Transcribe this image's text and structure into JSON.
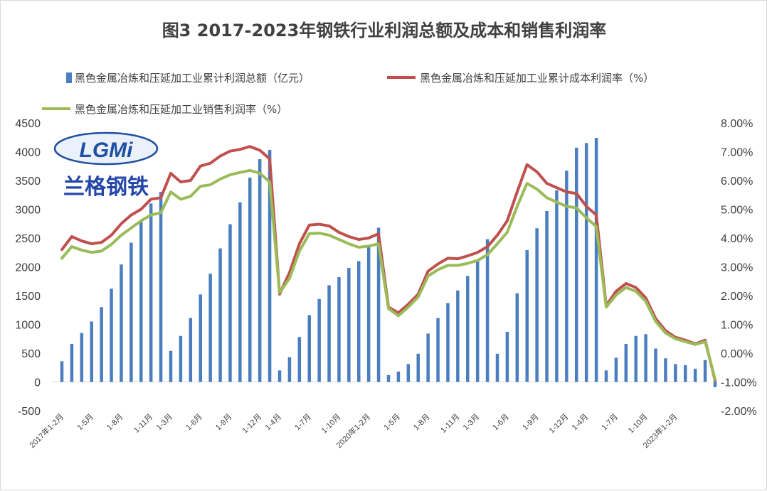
{
  "chart_data": {
    "type": "bar-line-combo",
    "title": "图3 2017-2023年钢铁行业利润总额及成本和销售利润率",
    "legend": [
      {
        "name": "黑色金属冶炼和压延加工业累计利润总额（亿元）",
        "kind": "bar",
        "color": "#4a7ebf"
      },
      {
        "name": "黑色金属冶炼和压延加工业累计成本利润率（%）",
        "kind": "line",
        "color": "#c0504d"
      },
      {
        "name": "黑色金属冶炼和压延加工业销售利润率（%）",
        "kind": "line",
        "color": "#9bbb59"
      }
    ],
    "legend_position": "top",
    "grid": false,
    "y_left": {
      "range": [
        -500,
        4500
      ],
      "ticks": [
        "-500",
        "0",
        "500",
        "1000",
        "1500",
        "2000",
        "2500",
        "3000",
        "3500",
        "4000",
        "4500"
      ]
    },
    "y_right": {
      "range": [
        -2,
        8
      ],
      "ticks": [
        "-2.00%",
        "-1.00%",
        "0.00%",
        "1.00%",
        "2.00%",
        "3.00%",
        "4.00%",
        "5.00%",
        "6.00%",
        "7.00%",
        "8.00%"
      ]
    },
    "x_tick_labels": [
      {
        "i": 0,
        "label": "2017年1-2月"
      },
      {
        "i": 3,
        "label": "1-5月"
      },
      {
        "i": 6,
        "label": "1-8月"
      },
      {
        "i": 9,
        "label": "1-11月"
      },
      {
        "i": 11,
        "label": "1-3月"
      },
      {
        "i": 14,
        "label": "1-6月"
      },
      {
        "i": 17,
        "label": "1-9月"
      },
      {
        "i": 20,
        "label": "1-12月"
      },
      {
        "i": 22,
        "label": "1-4月"
      },
      {
        "i": 25,
        "label": "1-7月"
      },
      {
        "i": 28,
        "label": "1-10月"
      },
      {
        "i": 31,
        "label": "2020年1-2月"
      },
      {
        "i": 34,
        "label": "1-5月"
      },
      {
        "i": 37,
        "label": "1-8月"
      },
      {
        "i": 40,
        "label": "1-11月"
      },
      {
        "i": 42,
        "label": "1-3月"
      },
      {
        "i": 45,
        "label": "1-6月"
      },
      {
        "i": 48,
        "label": "1-9月"
      },
      {
        "i": 51,
        "label": "1-12月"
      },
      {
        "i": 53,
        "label": "1-4月"
      },
      {
        "i": 56,
        "label": "1-7月"
      },
      {
        "i": 59,
        "label": "1-10月"
      },
      {
        "i": 62,
        "label": "2023年1-2月"
      }
    ],
    "profit_total": [
      360,
      660,
      850,
      1050,
      1300,
      1620,
      2040,
      2420,
      2800,
      3100,
      3300,
      540,
      800,
      1110,
      1520,
      1880,
      2320,
      2740,
      3120,
      3550,
      3870,
      4030,
      200,
      430,
      780,
      1160,
      1440,
      1680,
      1820,
      1980,
      2100,
      2360,
      2680,
      120,
      180,
      310,
      490,
      840,
      1110,
      1370,
      1590,
      1840,
      2120,
      2480,
      490,
      870,
      1540,
      2290,
      2670,
      2970,
      3330,
      3670,
      4070,
      4150,
      4240,
      200,
      420,
      660,
      800,
      830,
      580,
      410,
      310,
      290,
      230,
      380,
      -90
    ],
    "cost_profit_rate": [
      3.6,
      4.05,
      3.9,
      3.8,
      3.85,
      4.1,
      4.5,
      4.8,
      5.0,
      5.35,
      5.4,
      6.25,
      5.95,
      6.0,
      6.5,
      6.6,
      6.85,
      7.02,
      7.08,
      7.18,
      7.05,
      6.75,
      2.05,
      2.8,
      3.8,
      4.45,
      4.48,
      4.42,
      4.2,
      4.05,
      3.95,
      4.0,
      4.15,
      1.6,
      1.4,
      1.7,
      2.05,
      2.85,
      3.1,
      3.3,
      3.28,
      3.38,
      3.5,
      3.7,
      4.1,
      4.6,
      5.6,
      6.55,
      6.3,
      5.9,
      5.75,
      5.6,
      5.55,
      5.1,
      4.8,
      1.65,
      2.15,
      2.42,
      2.28,
      1.92,
      1.2,
      0.78,
      0.55,
      0.45,
      0.32,
      0.45,
      -0.95
    ],
    "sales_profit_rate": [
      3.3,
      3.7,
      3.58,
      3.5,
      3.55,
      3.78,
      4.1,
      4.35,
      4.6,
      4.8,
      4.88,
      5.6,
      5.35,
      5.45,
      5.8,
      5.85,
      6.05,
      6.2,
      6.28,
      6.35,
      6.25,
      5.95,
      2.1,
      2.6,
      3.55,
      4.15,
      4.17,
      4.1,
      3.95,
      3.8,
      3.68,
      3.72,
      3.8,
      1.55,
      1.3,
      1.6,
      1.95,
      2.68,
      2.9,
      3.05,
      3.05,
      3.12,
      3.22,
      3.42,
      3.8,
      4.2,
      5.1,
      5.9,
      5.7,
      5.4,
      5.25,
      5.1,
      5.05,
      4.7,
      4.4,
      1.6,
      2.02,
      2.28,
      2.15,
      1.8,
      1.1,
      0.7,
      0.5,
      0.4,
      0.3,
      0.4,
      -0.9
    ]
  },
  "logo": {
    "latin": "LGMi",
    "cn": "兰格钢铁"
  }
}
